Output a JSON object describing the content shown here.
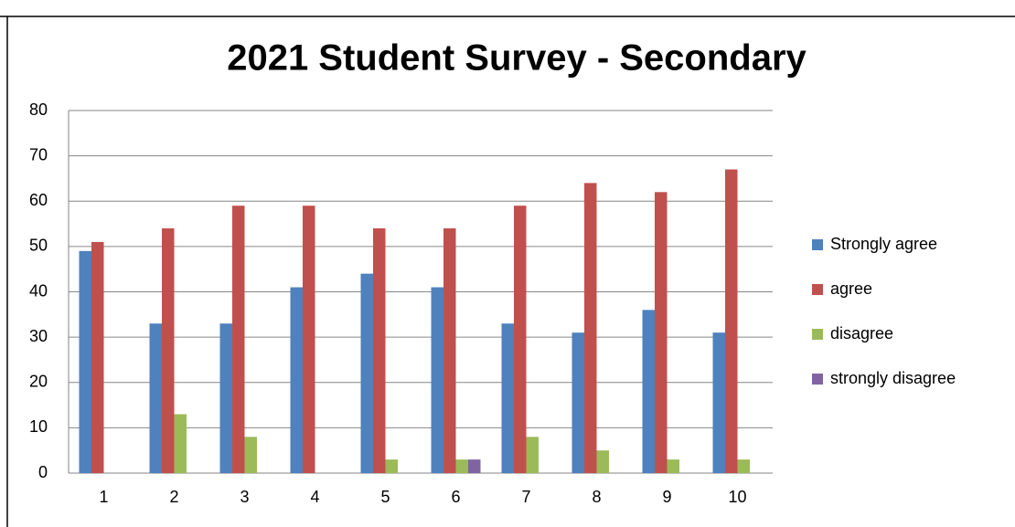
{
  "chart_data": {
    "type": "bar",
    "title": "2021 Student Survey - Secondary",
    "categories": [
      "1",
      "2",
      "3",
      "4",
      "5",
      "6",
      "7",
      "8",
      "9",
      "10"
    ],
    "series": [
      {
        "name": "Strongly agree",
        "color": "#4f81bd",
        "values": [
          49,
          33,
          33,
          41,
          44,
          41,
          33,
          31,
          36,
          31
        ]
      },
      {
        "name": "agree",
        "color": "#c0504d",
        "values": [
          51,
          54,
          59,
          59,
          54,
          54,
          59,
          64,
          62,
          67
        ]
      },
      {
        "name": "disagree",
        "color": "#9bbb59",
        "values": [
          0,
          13,
          8,
          0,
          3,
          3,
          8,
          5,
          3,
          3
        ]
      },
      {
        "name": "strongly disagree",
        "color": "#8064a2",
        "values": [
          0,
          0,
          0,
          0,
          0,
          3,
          0,
          0,
          0,
          0
        ]
      }
    ],
    "ylim": [
      0,
      80
    ],
    "yticks": [
      0,
      10,
      20,
      30,
      40,
      50,
      60,
      70,
      80
    ],
    "grid": true,
    "legend": "right"
  }
}
